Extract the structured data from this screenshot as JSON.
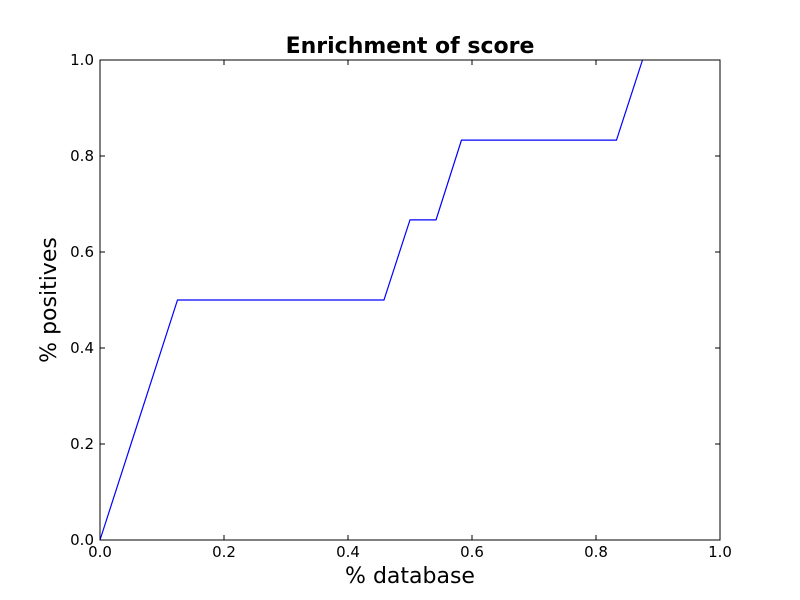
{
  "chart_data": {
    "type": "line",
    "title": "Enrichment of score",
    "xlabel": "% database",
    "ylabel": "% positives",
    "xlim": [
      0.0,
      1.0
    ],
    "ylim": [
      0.0,
      1.0
    ],
    "xticks": [
      "0.0",
      "0.2",
      "0.4",
      "0.6",
      "0.8",
      "1.0"
    ],
    "yticks": [
      "0.0",
      "0.2",
      "0.4",
      "0.6",
      "0.8",
      "1.0"
    ],
    "grid": false,
    "series": [
      {
        "color": "#0000ff",
        "x": [
          0.0,
          0.125,
          0.458,
          0.5,
          0.542,
          0.583,
          0.833,
          0.875
        ],
        "y": [
          0.0,
          0.5,
          0.5,
          0.667,
          0.667,
          0.833,
          0.833,
          1.0
        ]
      }
    ]
  }
}
